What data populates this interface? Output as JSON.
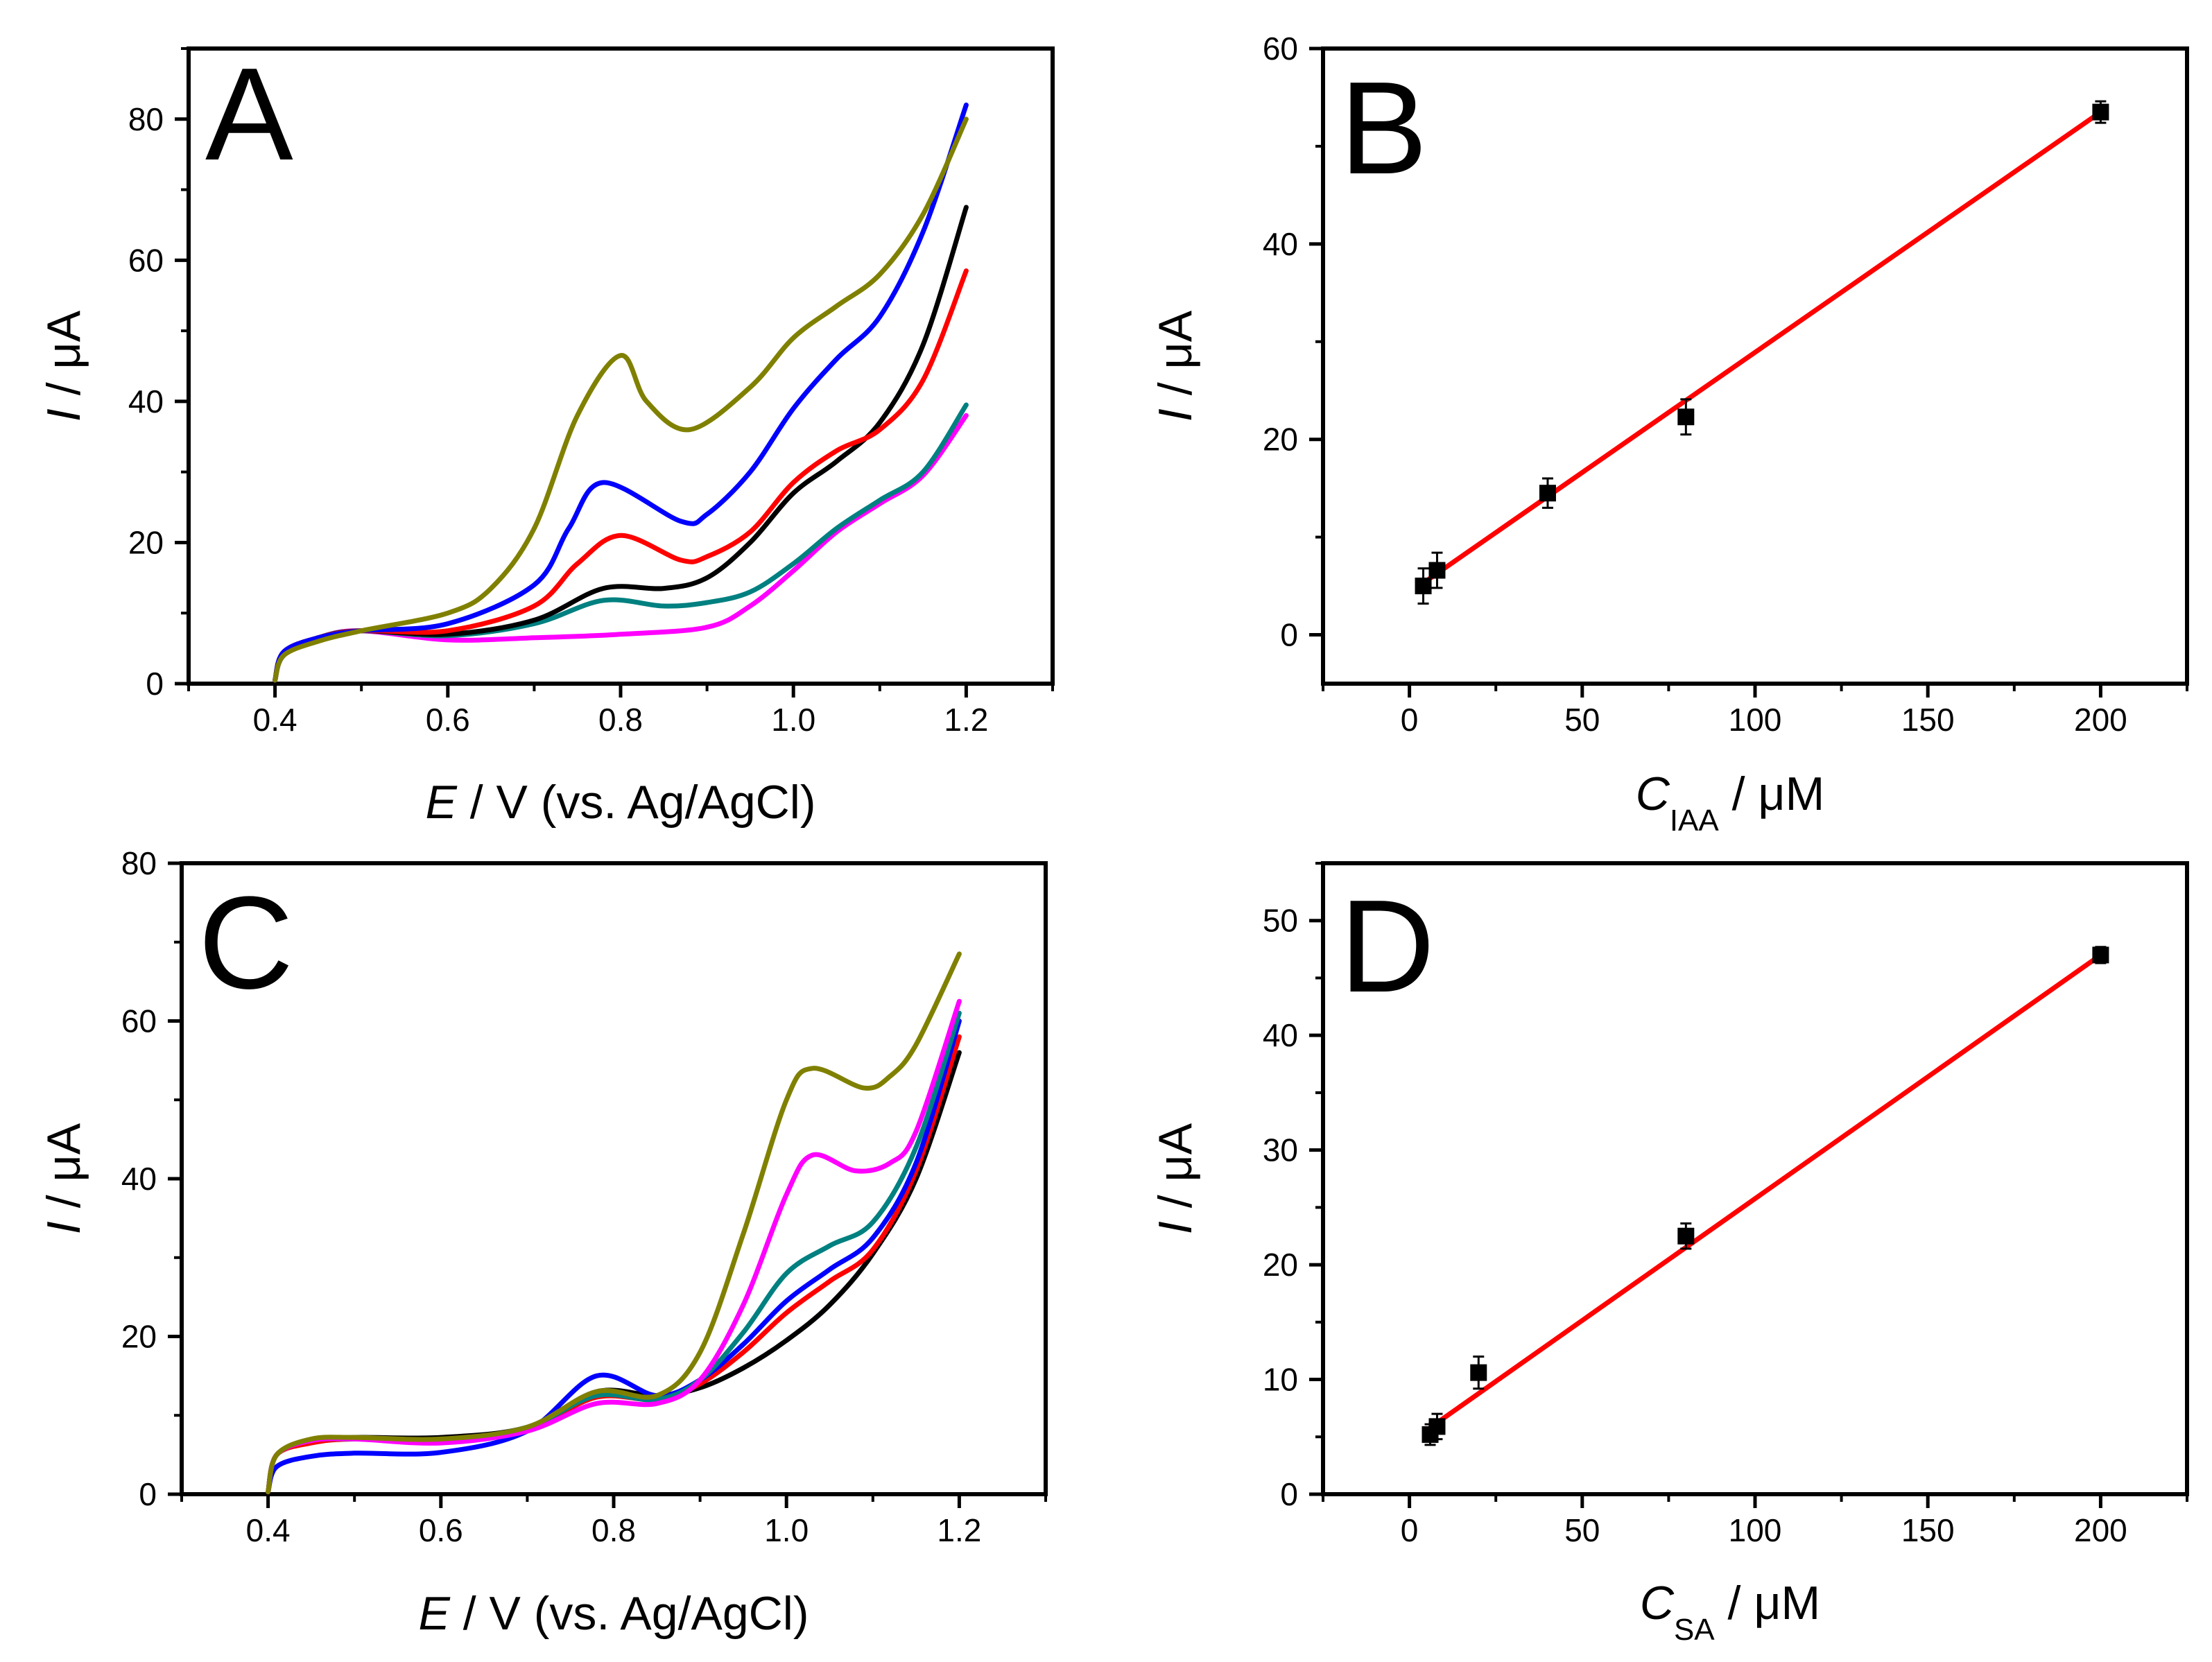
{
  "figure": {
    "panels": [
      {
        "id": "A",
        "letter": "A",
        "chart_data": {
          "type": "line",
          "title": "",
          "xlabel": "E / V (vs. Ag/AgCl)",
          "ylabel": "I / μA",
          "xlim": [
            0.3,
            1.3
          ],
          "ylim": [
            0,
            90
          ],
          "xticks": [
            0.4,
            0.6,
            0.8,
            1.0,
            1.2
          ],
          "xtick_labels": [
            "0.4",
            "0.6",
            "0.8",
            "1.0",
            "1.2"
          ],
          "yticks": [
            0,
            20,
            40,
            60,
            80
          ],
          "ytick_labels": [
            "0",
            "20",
            "40",
            "60",
            "80"
          ],
          "grid": false,
          "legend": "none",
          "series": [
            {
              "name": "magenta",
              "color": "#ff00ff",
              "x": [
                0.4,
                0.41,
                0.45,
                0.5,
                0.6,
                0.7,
                0.8,
                0.9,
                0.95,
                1.0,
                1.05,
                1.1,
                1.15,
                1.2
              ],
              "y": [
                0.5,
                4,
                6.5,
                7.5,
                6.2,
                6.5,
                7,
                8,
                11,
                16,
                21.5,
                25.5,
                29.5,
                38
              ]
            },
            {
              "name": "teal",
              "color": "#008080",
              "x": [
                0.4,
                0.41,
                0.45,
                0.5,
                0.6,
                0.7,
                0.78,
                0.85,
                0.9,
                0.95,
                1.0,
                1.05,
                1.1,
                1.15,
                1.2
              ],
              "y": [
                0.5,
                4,
                6.5,
                7.5,
                6.8,
                8.5,
                11.8,
                11,
                11.5,
                13,
                17,
                22,
                26,
                30,
                39.5
              ]
            },
            {
              "name": "black",
              "color": "#000000",
              "x": [
                0.4,
                0.41,
                0.45,
                0.5,
                0.6,
                0.7,
                0.78,
                0.85,
                0.9,
                0.95,
                1.0,
                1.05,
                1.1,
                1.15,
                1.2
              ],
              "y": [
                0.5,
                4.5,
                6.5,
                7.5,
                7,
                9,
                13.5,
                13.5,
                15,
                20,
                27,
                31.5,
                37,
                48,
                67.5
              ]
            },
            {
              "name": "red",
              "color": "#ff0000",
              "x": [
                0.4,
                0.41,
                0.45,
                0.5,
                0.6,
                0.7,
                0.75,
                0.8,
                0.87,
                0.9,
                0.95,
                1.0,
                1.05,
                1.1,
                1.15,
                1.2
              ],
              "y": [
                0.5,
                4.5,
                6.5,
                7.5,
                7.5,
                11,
                17,
                21,
                17.5,
                18,
                21.5,
                28.5,
                33,
                36,
                43,
                58.5
              ]
            },
            {
              "name": "blue",
              "color": "#0000ff",
              "x": [
                0.4,
                0.41,
                0.45,
                0.5,
                0.6,
                0.7,
                0.74,
                0.78,
                0.87,
                0.9,
                0.95,
                1.0,
                1.05,
                1.1,
                1.15,
                1.2
              ],
              "y": [
                0.5,
                4.5,
                6.5,
                7.5,
                8.5,
                14,
                22,
                28.5,
                23,
                24,
                30,
                39,
                46,
                52,
                64,
                82
              ]
            },
            {
              "name": "olive",
              "color": "#808000",
              "x": [
                0.4,
                0.41,
                0.45,
                0.5,
                0.6,
                0.65,
                0.7,
                0.75,
                0.8,
                0.83,
                0.88,
                0.95,
                1.0,
                1.05,
                1.1,
                1.15,
                1.2
              ],
              "y": [
                0.5,
                4,
                6,
                7.5,
                10,
                13.5,
                22,
                38,
                46.5,
                40,
                36,
                42,
                49,
                53.5,
                58,
                66.5,
                80
              ]
            }
          ]
        }
      },
      {
        "id": "B",
        "letter": "B",
        "chart_data": {
          "type": "scatter",
          "title": "",
          "xlabel_main": "C",
          "xlabel_sub": "IAA",
          "xlabel_tail": " / μM",
          "ylabel": "I / μA",
          "xlim": [
            -25,
            225
          ],
          "ylim": [
            -5,
            60
          ],
          "xticks": [
            0,
            50,
            100,
            150,
            200
          ],
          "xtick_labels": [
            "0",
            "50",
            "100",
            "150",
            "200"
          ],
          "yticks": [
            0,
            20,
            40,
            60
          ],
          "ytick_labels": [
            "0",
            "20",
            "40",
            "60"
          ],
          "grid": false,
          "legend": "none",
          "points": [
            {
              "x": 4,
              "y": 5,
              "err": 1.8
            },
            {
              "x": 8,
              "y": 6.6,
              "err": 1.8
            },
            {
              "x": 40,
              "y": 14.5,
              "err": 1.5
            },
            {
              "x": 80,
              "y": 22.3,
              "err": 1.8
            },
            {
              "x": 200,
              "y": 53.5,
              "err": 1.1
            }
          ],
          "fit": {
            "color": "#ff0000",
            "x": [
              4,
              200
            ],
            "y": [
              5.3,
              53.5
            ]
          }
        }
      },
      {
        "id": "C",
        "letter": "C",
        "chart_data": {
          "type": "line",
          "title": "",
          "xlabel": "E / V (vs. Ag/AgCl)",
          "ylabel": "I / μA",
          "xlim": [
            0.3,
            1.3
          ],
          "ylim": [
            0,
            80
          ],
          "xticks": [
            0.4,
            0.6,
            0.8,
            1.0,
            1.2
          ],
          "xtick_labels": [
            "0.4",
            "0.6",
            "0.8",
            "1.0",
            "1.2"
          ],
          "yticks": [
            0,
            20,
            40,
            60,
            80
          ],
          "ytick_labels": [
            "0",
            "20",
            "40",
            "60",
            "80"
          ],
          "grid": false,
          "legend": "none",
          "series": [
            {
              "name": "black",
              "color": "#000000",
              "x": [
                0.4,
                0.41,
                0.45,
                0.5,
                0.6,
                0.7,
                0.78,
                0.85,
                0.9,
                0.95,
                1.0,
                1.05,
                1.1,
                1.15,
                1.2
              ],
              "y": [
                0.3,
                5,
                6.8,
                7.2,
                7.2,
                8.5,
                13,
                12.5,
                13.5,
                16,
                19.5,
                24,
                30.5,
                40,
                56
              ]
            },
            {
              "name": "red",
              "color": "#ff0000",
              "x": [
                0.4,
                0.41,
                0.45,
                0.5,
                0.6,
                0.7,
                0.78,
                0.85,
                0.9,
                0.95,
                1.0,
                1.05,
                1.1,
                1.15,
                1.2
              ],
              "y": [
                0.3,
                5,
                6.5,
                7,
                6.8,
                8.3,
                12.3,
                12,
                14,
                18,
                23,
                27,
                31,
                41,
                58
              ]
            },
            {
              "name": "blue",
              "color": "#0000ff",
              "x": [
                0.4,
                0.41,
                0.45,
                0.5,
                0.6,
                0.7,
                0.78,
                0.85,
                0.9,
                0.95,
                1.0,
                1.05,
                1.1,
                1.15,
                1.2
              ],
              "y": [
                0.3,
                3.5,
                4.8,
                5.2,
                5.3,
                8,
                15,
                12.5,
                14.5,
                19,
                24.5,
                28.5,
                32.5,
                42,
                60
              ]
            },
            {
              "name": "teal",
              "color": "#008080",
              "x": [
                0.4,
                0.41,
                0.45,
                0.5,
                0.6,
                0.7,
                0.78,
                0.85,
                0.9,
                0.95,
                1.0,
                1.05,
                1.1,
                1.15,
                1.2
              ],
              "y": [
                0.3,
                5,
                6.8,
                7,
                6.8,
                8.5,
                12.5,
                12,
                14.5,
                20.5,
                28,
                31.5,
                34.5,
                44,
                61
              ]
            },
            {
              "name": "magenta",
              "color": "#ff00ff",
              "x": [
                0.4,
                0.41,
                0.45,
                0.5,
                0.6,
                0.7,
                0.78,
                0.85,
                0.9,
                0.95,
                1.0,
                1.03,
                1.08,
                1.12,
                1.15,
                1.2
              ],
              "y": [
                0.3,
                5,
                6.8,
                7,
                6.5,
                8,
                11.5,
                11.5,
                14.5,
                24,
                38,
                43,
                41,
                42,
                46,
                62.5
              ]
            },
            {
              "name": "olive",
              "color": "#808000",
              "x": [
                0.4,
                0.41,
                0.45,
                0.5,
                0.6,
                0.7,
                0.78,
                0.85,
                0.9,
                0.95,
                1.0,
                1.03,
                1.09,
                1.12,
                1.15,
                1.2
              ],
              "y": [
                0.3,
                5,
                7,
                7.2,
                7,
                8.5,
                13,
                12.5,
                18,
                33,
                50,
                54,
                51.5,
                53,
                57,
                68.5
              ]
            }
          ]
        }
      },
      {
        "id": "D",
        "letter": "D",
        "chart_data": {
          "type": "scatter",
          "title": "",
          "xlabel_main": "C",
          "xlabel_sub": "SA",
          "xlabel_tail": " / μM",
          "ylabel": "I / μA",
          "xlim": [
            -25,
            225
          ],
          "ylim": [
            0,
            55
          ],
          "xticks": [
            0,
            50,
            100,
            150,
            200
          ],
          "xtick_labels": [
            "0",
            "50",
            "100",
            "150",
            "200"
          ],
          "yticks": [
            0,
            10,
            20,
            30,
            40,
            50
          ],
          "ytick_labels": [
            "0",
            "10",
            "20",
            "30",
            "40",
            "50"
          ],
          "grid": false,
          "legend": "none",
          "points": [
            {
              "x": 6,
              "y": 5.2,
              "err": 0.9
            },
            {
              "x": 8,
              "y": 5.9,
              "err": 1.1
            },
            {
              "x": 20,
              "y": 10.6,
              "err": 1.4
            },
            {
              "x": 80,
              "y": 22.5,
              "err": 1.1
            },
            {
              "x": 200,
              "y": 47,
              "err": 0.7
            }
          ],
          "fit": {
            "color": "#ff0000",
            "x": [
              6,
              200
            ],
            "y": [
              5.8,
              47
            ]
          }
        }
      }
    ]
  }
}
